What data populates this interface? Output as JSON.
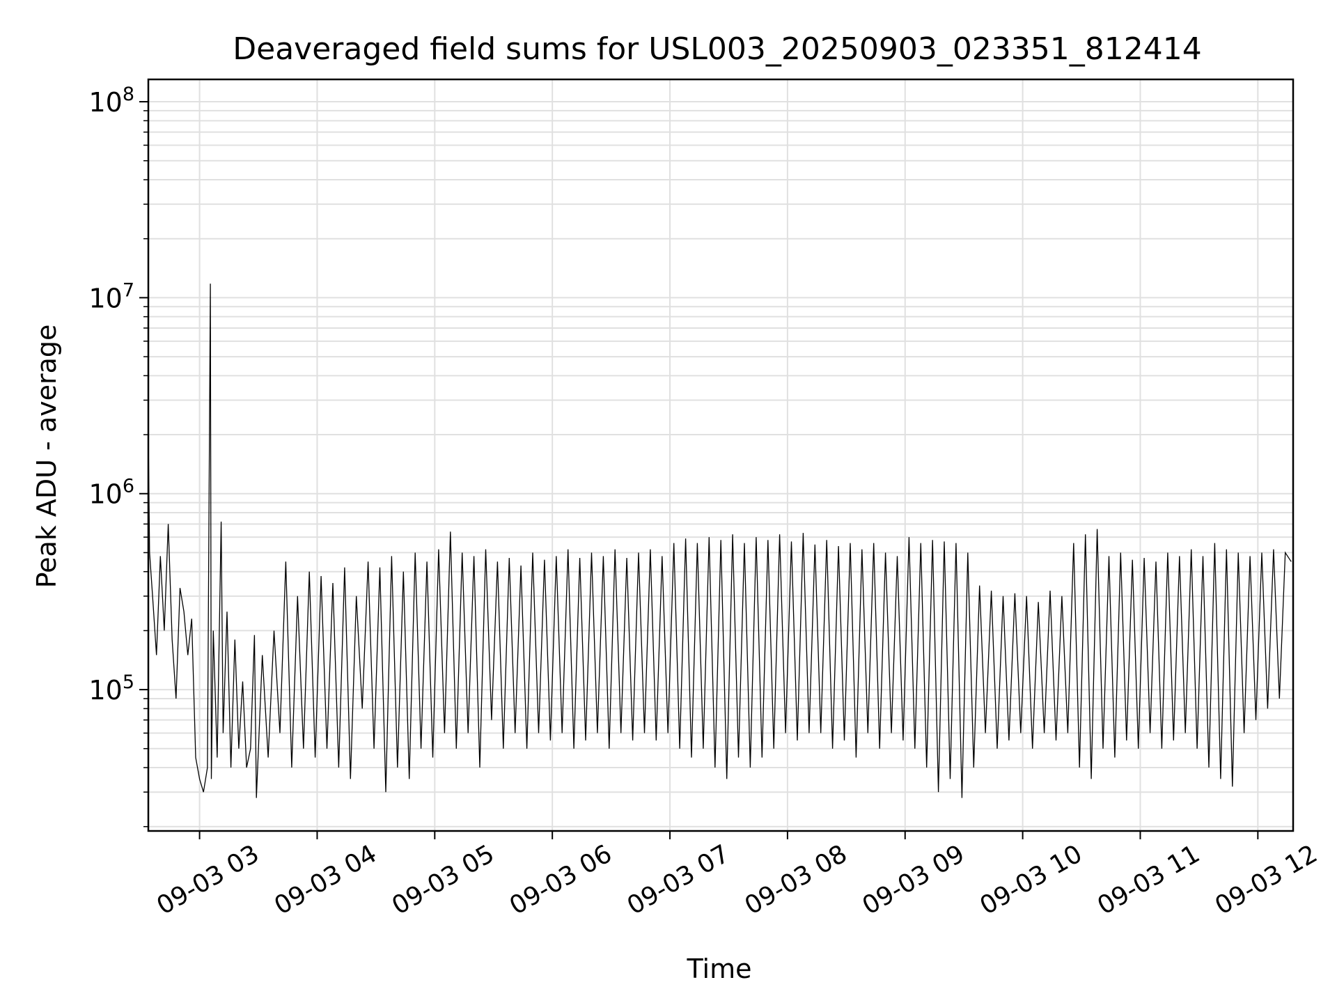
{
  "chart_data": {
    "type": "line",
    "title": "Deaveraged field sums for USL003_20250903_023351_812414",
    "xlabel": "Time",
    "ylabel": "Peak ADU - average",
    "yscale": "log",
    "ylim": [
      19000,
      130000000
    ],
    "xlim": [
      "2025-09-03 02:33:51",
      "2025-09-03 12:18:00"
    ],
    "grid": true,
    "grid_color": "#e0e0e0",
    "line_color": "#000000",
    "x_ticks": [
      {
        "t": "2025-09-03 03:00",
        "label": "09-03 03"
      },
      {
        "t": "2025-09-03 04:00",
        "label": "09-03 04"
      },
      {
        "t": "2025-09-03 05:00",
        "label": "09-03 05"
      },
      {
        "t": "2025-09-03 06:00",
        "label": "09-03 06"
      },
      {
        "t": "2025-09-03 07:00",
        "label": "09-03 07"
      },
      {
        "t": "2025-09-03 08:00",
        "label": "09-03 08"
      },
      {
        "t": "2025-09-03 09:00",
        "label": "09-03 09"
      },
      {
        "t": "2025-09-03 10:00",
        "label": "09-03 10"
      },
      {
        "t": "2025-09-03 11:00",
        "label": "09-03 11"
      },
      {
        "t": "2025-09-03 12:00",
        "label": "09-03 12"
      }
    ],
    "y_ticks": [
      {
        "value": 100000,
        "base": "10",
        "exp": "5"
      },
      {
        "value": 1000000,
        "base": "10",
        "exp": "6"
      },
      {
        "value": 10000000,
        "base": "10",
        "exp": "7"
      },
      {
        "value": 100000000,
        "base": "10",
        "exp": "8"
      }
    ],
    "series": [
      {
        "x": [
          "2025-09-03 02:33:51",
          "2025-09-03 02:34:30",
          "2025-09-03 02:36:00",
          "2025-09-03 02:38:00",
          "2025-09-03 02:40:00",
          "2025-09-03 02:42:00",
          "2025-09-03 02:44:00",
          "2025-09-03 02:46:00",
          "2025-09-03 02:48:00",
          "2025-09-03 02:50:00",
          "2025-09-03 02:52:00",
          "2025-09-03 02:54:00",
          "2025-09-03 02:56:00",
          "2025-09-03 02:58:00",
          "2025-09-03 03:00:00",
          "2025-09-03 03:02:00",
          "2025-09-03 03:04:00",
          "2025-09-03 03:05:30",
          "2025-09-03 03:06:00",
          "2025-09-03 03:07:00",
          "2025-09-03 03:09:00",
          "2025-09-03 03:11:00",
          "2025-09-03 03:12:00",
          "2025-09-03 03:14:00",
          "2025-09-03 03:16:00",
          "2025-09-03 03:18:00",
          "2025-09-03 03:20:00",
          "2025-09-03 03:22:00",
          "2025-09-03 03:24:00",
          "2025-09-03 03:26:00",
          "2025-09-03 03:28:00",
          "2025-09-03 03:29:00",
          "2025-09-03 03:32:00",
          "2025-09-03 03:35:00",
          "2025-09-03 03:38:00",
          "2025-09-03 03:41:00",
          "2025-09-03 03:44:00",
          "2025-09-03 03:47:00",
          "2025-09-03 03:50:00",
          "2025-09-03 03:53:00",
          "2025-09-03 03:56:00",
          "2025-09-03 03:59:00",
          "2025-09-03 04:02:00",
          "2025-09-03 04:05:00",
          "2025-09-03 04:08:00",
          "2025-09-03 04:11:00",
          "2025-09-03 04:14:00",
          "2025-09-03 04:17:00",
          "2025-09-03 04:20:00",
          "2025-09-03 04:23:00",
          "2025-09-03 04:26:00",
          "2025-09-03 04:29:00",
          "2025-09-03 04:32:00",
          "2025-09-03 04:35:00",
          "2025-09-03 04:38:00",
          "2025-09-03 04:41:00",
          "2025-09-03 04:44:00",
          "2025-09-03 04:47:00",
          "2025-09-03 04:50:00",
          "2025-09-03 04:53:00",
          "2025-09-03 04:56:00",
          "2025-09-03 04:59:00",
          "2025-09-03 05:02:00",
          "2025-09-03 05:05:00",
          "2025-09-03 05:08:00",
          "2025-09-03 05:11:00",
          "2025-09-03 05:14:00",
          "2025-09-03 05:17:00",
          "2025-09-03 05:20:00",
          "2025-09-03 05:23:00",
          "2025-09-03 05:26:00",
          "2025-09-03 05:29:00",
          "2025-09-03 05:32:00",
          "2025-09-03 05:35:00",
          "2025-09-03 05:38:00",
          "2025-09-03 05:41:00",
          "2025-09-03 05:44:00",
          "2025-09-03 05:47:00",
          "2025-09-03 05:50:00",
          "2025-09-03 05:53:00",
          "2025-09-03 05:56:00",
          "2025-09-03 05:59:00",
          "2025-09-03 06:02:00",
          "2025-09-03 06:05:00",
          "2025-09-03 06:08:00",
          "2025-09-03 06:11:00",
          "2025-09-03 06:14:00",
          "2025-09-03 06:17:00",
          "2025-09-03 06:20:00",
          "2025-09-03 06:23:00",
          "2025-09-03 06:26:00",
          "2025-09-03 06:29:00",
          "2025-09-03 06:32:00",
          "2025-09-03 06:35:00",
          "2025-09-03 06:38:00",
          "2025-09-03 06:41:00",
          "2025-09-03 06:44:00",
          "2025-09-03 06:47:00",
          "2025-09-03 06:50:00",
          "2025-09-03 06:53:00",
          "2025-09-03 06:56:00",
          "2025-09-03 06:59:00",
          "2025-09-03 07:02:00",
          "2025-09-03 07:05:00",
          "2025-09-03 07:08:00",
          "2025-09-03 07:11:00",
          "2025-09-03 07:14:00",
          "2025-09-03 07:17:00",
          "2025-09-03 07:20:00",
          "2025-09-03 07:23:00",
          "2025-09-03 07:26:00",
          "2025-09-03 07:29:00",
          "2025-09-03 07:32:00",
          "2025-09-03 07:35:00",
          "2025-09-03 07:38:00",
          "2025-09-03 07:41:00",
          "2025-09-03 07:44:00",
          "2025-09-03 07:47:00",
          "2025-09-03 07:50:00",
          "2025-09-03 07:53:00",
          "2025-09-03 07:56:00",
          "2025-09-03 07:59:00",
          "2025-09-03 08:02:00",
          "2025-09-03 08:05:00",
          "2025-09-03 08:08:00",
          "2025-09-03 08:11:00",
          "2025-09-03 08:14:00",
          "2025-09-03 08:17:00",
          "2025-09-03 08:20:00",
          "2025-09-03 08:23:00",
          "2025-09-03 08:26:00",
          "2025-09-03 08:29:00",
          "2025-09-03 08:32:00",
          "2025-09-03 08:35:00",
          "2025-09-03 08:38:00",
          "2025-09-03 08:41:00",
          "2025-09-03 08:44:00",
          "2025-09-03 08:47:00",
          "2025-09-03 08:50:00",
          "2025-09-03 08:53:00",
          "2025-09-03 08:56:00",
          "2025-09-03 08:59:00",
          "2025-09-03 09:02:00",
          "2025-09-03 09:05:00",
          "2025-09-03 09:08:00",
          "2025-09-03 09:11:00",
          "2025-09-03 09:14:00",
          "2025-09-03 09:17:00",
          "2025-09-03 09:20:00",
          "2025-09-03 09:23:00",
          "2025-09-03 09:26:00",
          "2025-09-03 09:29:00",
          "2025-09-03 09:32:00",
          "2025-09-03 09:35:00",
          "2025-09-03 09:38:00",
          "2025-09-03 09:41:00",
          "2025-09-03 09:44:00",
          "2025-09-03 09:47:00",
          "2025-09-03 09:50:00",
          "2025-09-03 09:53:00",
          "2025-09-03 09:56:00",
          "2025-09-03 09:59:00",
          "2025-09-03 10:02:00",
          "2025-09-03 10:05:00",
          "2025-09-03 10:08:00",
          "2025-09-03 10:11:00",
          "2025-09-03 10:14:00",
          "2025-09-03 10:17:00",
          "2025-09-03 10:20:00",
          "2025-09-03 10:23:00",
          "2025-09-03 10:26:00",
          "2025-09-03 10:29:00",
          "2025-09-03 10:32:00",
          "2025-09-03 10:35:00",
          "2025-09-03 10:38:00",
          "2025-09-03 10:41:00",
          "2025-09-03 10:44:00",
          "2025-09-03 10:47:00",
          "2025-09-03 10:50:00",
          "2025-09-03 10:53:00",
          "2025-09-03 10:56:00",
          "2025-09-03 10:59:00",
          "2025-09-03 11:02:00",
          "2025-09-03 11:05:00",
          "2025-09-03 11:08:00",
          "2025-09-03 11:11:00",
          "2025-09-03 11:14:00",
          "2025-09-03 11:17:00",
          "2025-09-03 11:20:00",
          "2025-09-03 11:23:00",
          "2025-09-03 11:26:00",
          "2025-09-03 11:29:00",
          "2025-09-03 11:32:00",
          "2025-09-03 11:35:00",
          "2025-09-03 11:38:00",
          "2025-09-03 11:41:00",
          "2025-09-03 11:44:00",
          "2025-09-03 11:47:00",
          "2025-09-03 11:50:00",
          "2025-09-03 11:53:00",
          "2025-09-03 11:56:00",
          "2025-09-03 11:59:00",
          "2025-09-03 12:02:00",
          "2025-09-03 12:05:00",
          "2025-09-03 12:08:00",
          "2025-09-03 12:11:00",
          "2025-09-03 12:14:00",
          "2025-09-03 12:17:00"
        ],
        "y": [
          2000000,
          500000,
          300000,
          150000,
          480000,
          200000,
          700000,
          180000,
          90000,
          330000,
          250000,
          150000,
          230000,
          45000,
          35000,
          30000,
          40000,
          11800000,
          35000,
          200000,
          45000,
          720000,
          60000,
          250000,
          40000,
          180000,
          50000,
          110000,
          40000,
          50000,
          190000,
          28000,
          150000,
          45000,
          200000,
          60000,
          450000,
          40000,
          300000,
          50000,
          400000,
          45000,
          380000,
          50000,
          350000,
          40000,
          420000,
          35000,
          300000,
          80000,
          450000,
          50000,
          420000,
          30000,
          480000,
          40000,
          400000,
          35000,
          500000,
          50000,
          450000,
          45000,
          520000,
          60000,
          640000,
          50000,
          500000,
          60000,
          480000,
          40000,
          520000,
          70000,
          450000,
          50000,
          470000,
          60000,
          430000,
          50000,
          500000,
          60000,
          460000,
          55000,
          480000,
          60000,
          520000,
          50000,
          470000,
          55000,
          500000,
          60000,
          480000,
          50000,
          520000,
          60000,
          470000,
          55000,
          500000,
          60000,
          520000,
          55000,
          480000,
          60000,
          560000,
          50000,
          590000,
          45000,
          560000,
          50000,
          600000,
          40000,
          580000,
          35000,
          620000,
          45000,
          560000,
          40000,
          600000,
          45000,
          580000,
          50000,
          620000,
          60000,
          570000,
          55000,
          630000,
          60000,
          550000,
          60000,
          580000,
          50000,
          540000,
          55000,
          560000,
          45000,
          520000,
          60000,
          560000,
          50000,
          500000,
          60000,
          480000,
          55000,
          600000,
          50000,
          560000,
          40000,
          580000,
          30000,
          570000,
          35000,
          560000,
          28000,
          500000,
          40000,
          340000,
          60000,
          320000,
          50000,
          300000,
          55000,
          310000,
          60000,
          300000,
          50000,
          280000,
          60000,
          320000,
          55000,
          300000,
          60000,
          560000,
          40000,
          620000,
          35000,
          660000,
          50000,
          480000,
          45000,
          500000,
          55000,
          460000,
          50000,
          470000,
          60000,
          450000,
          50000,
          500000,
          55000,
          480000,
          60000,
          520000,
          50000,
          480000,
          40000,
          560000,
          35000,
          520000,
          32000,
          500000,
          60000,
          480000,
          70000,
          500000,
          80000,
          520000,
          90000,
          500000,
          450000
        ]
      }
    ]
  }
}
